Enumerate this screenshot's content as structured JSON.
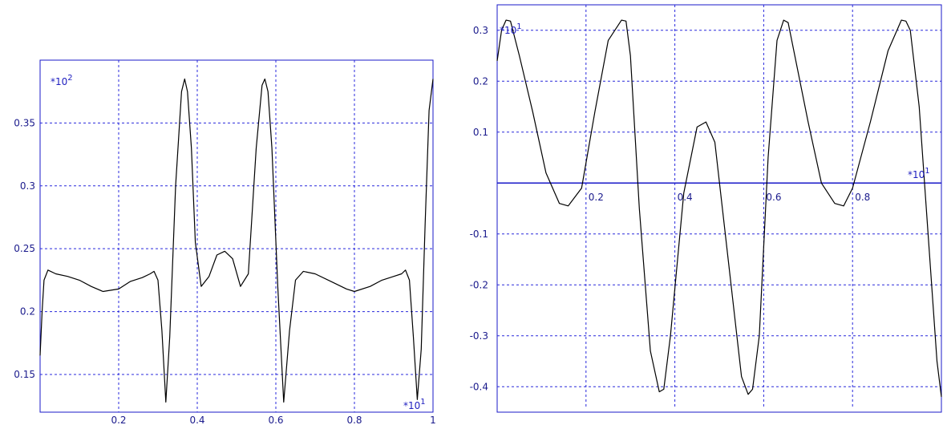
{
  "chart_data": [
    {
      "type": "line",
      "xlim": [
        0,
        1
      ],
      "ylim": [
        0.12,
        0.4
      ],
      "x_ticks": [
        {
          "v": 0.2,
          "label": "0.2"
        },
        {
          "v": 0.4,
          "label": "0.4"
        },
        {
          "v": 0.6,
          "label": "0.6"
        },
        {
          "v": 0.8,
          "label": "0.8"
        },
        {
          "v": 1.0,
          "label": "1"
        }
      ],
      "y_ticks": [
        {
          "v": 0.15,
          "label": "0.15"
        },
        {
          "v": 0.2,
          "label": "0.2"
        },
        {
          "v": 0.25,
          "label": "0.25"
        },
        {
          "v": 0.3,
          "label": "0.3"
        },
        {
          "v": 0.35,
          "label": "0.35"
        }
      ],
      "x_multiplier": {
        "base": "*10",
        "exp": "1"
      },
      "y_multiplier": {
        "base": "*10",
        "exp": "2"
      },
      "grid": true,
      "line_color": "#000000",
      "axis_color": "#1818c8",
      "grid_color": "#2828dc",
      "series": [
        {
          "x": [
            0.0,
            0.005,
            0.01,
            0.02,
            0.04,
            0.07,
            0.1,
            0.13,
            0.16,
            0.2,
            0.23,
            0.26,
            0.28,
            0.29,
            0.3,
            0.31,
            0.32,
            0.33,
            0.345,
            0.36,
            0.368,
            0.375,
            0.385,
            0.395,
            0.41,
            0.43,
            0.45,
            0.47,
            0.49,
            0.51,
            0.53,
            0.55,
            0.565,
            0.572,
            0.58,
            0.59,
            0.605,
            0.62,
            0.635,
            0.65,
            0.67,
            0.7,
            0.74,
            0.78,
            0.8,
            0.84,
            0.87,
            0.9,
            0.92,
            0.93,
            0.94,
            0.95,
            0.96,
            0.97,
            0.98,
            0.99,
            1.0
          ],
          "y": [
            0.165,
            0.2,
            0.225,
            0.233,
            0.23,
            0.228,
            0.225,
            0.22,
            0.216,
            0.218,
            0.224,
            0.227,
            0.23,
            0.232,
            0.225,
            0.185,
            0.128,
            0.18,
            0.3,
            0.375,
            0.385,
            0.375,
            0.33,
            0.255,
            0.22,
            0.228,
            0.245,
            0.248,
            0.242,
            0.22,
            0.23,
            0.33,
            0.38,
            0.385,
            0.375,
            0.33,
            0.22,
            0.128,
            0.185,
            0.225,
            0.232,
            0.23,
            0.224,
            0.218,
            0.216,
            0.22,
            0.225,
            0.228,
            0.23,
            0.233,
            0.225,
            0.18,
            0.13,
            0.17,
            0.27,
            0.36,
            0.385
          ]
        }
      ]
    },
    {
      "type": "line",
      "xlim": [
        0,
        1
      ],
      "ylim": [
        -0.45,
        0.35
      ],
      "x_ticks": [
        {
          "v": 0.2,
          "label": "0.2"
        },
        {
          "v": 0.4,
          "label": "0.4"
        },
        {
          "v": 0.6,
          "label": "0.6"
        },
        {
          "v": 0.8,
          "label": "0.8"
        },
        {
          "v": 1.0,
          "label": "1"
        }
      ],
      "y_ticks": [
        {
          "v": 0.3,
          "label": "0.3"
        },
        {
          "v": 0.2,
          "label": "0.2"
        },
        {
          "v": 0.1,
          "label": "0.1"
        },
        {
          "v": -0.1,
          "label": "-0.1"
        },
        {
          "v": -0.2,
          "label": "-0.2"
        },
        {
          "v": -0.3,
          "label": "-0.3"
        },
        {
          "v": -0.4,
          "label": "-0.4"
        }
      ],
      "x_multiplier": {
        "base": "*10",
        "exp": "1"
      },
      "y_multiplier": {
        "base": "*10",
        "exp": "1"
      },
      "grid": true,
      "line_color": "#000000",
      "axis_color": "#1818c8",
      "grid_color": "#2828dc",
      "series": [
        {
          "x": [
            0.0,
            0.01,
            0.02,
            0.03,
            0.05,
            0.08,
            0.11,
            0.14,
            0.16,
            0.19,
            0.22,
            0.25,
            0.28,
            0.29,
            0.3,
            0.32,
            0.345,
            0.365,
            0.375,
            0.39,
            0.42,
            0.45,
            0.47,
            0.49,
            0.52,
            0.55,
            0.565,
            0.575,
            0.59,
            0.61,
            0.63,
            0.645,
            0.655,
            0.67,
            0.7,
            0.73,
            0.76,
            0.78,
            0.8,
            0.84,
            0.88,
            0.91,
            0.92,
            0.93,
            0.95,
            0.97,
            0.99,
            1.0
          ],
          "y": [
            0.24,
            0.3,
            0.32,
            0.318,
            0.25,
            0.14,
            0.02,
            -0.04,
            -0.045,
            -0.01,
            0.14,
            0.28,
            0.32,
            0.318,
            0.25,
            -0.05,
            -0.33,
            -0.41,
            -0.405,
            -0.3,
            -0.02,
            0.11,
            0.12,
            0.08,
            -0.15,
            -0.38,
            -0.415,
            -0.405,
            -0.3,
            0.05,
            0.28,
            0.32,
            0.315,
            0.25,
            0.12,
            0.0,
            -0.04,
            -0.045,
            -0.01,
            0.12,
            0.26,
            0.32,
            0.318,
            0.3,
            0.15,
            -0.1,
            -0.35,
            -0.42
          ]
        }
      ]
    }
  ]
}
